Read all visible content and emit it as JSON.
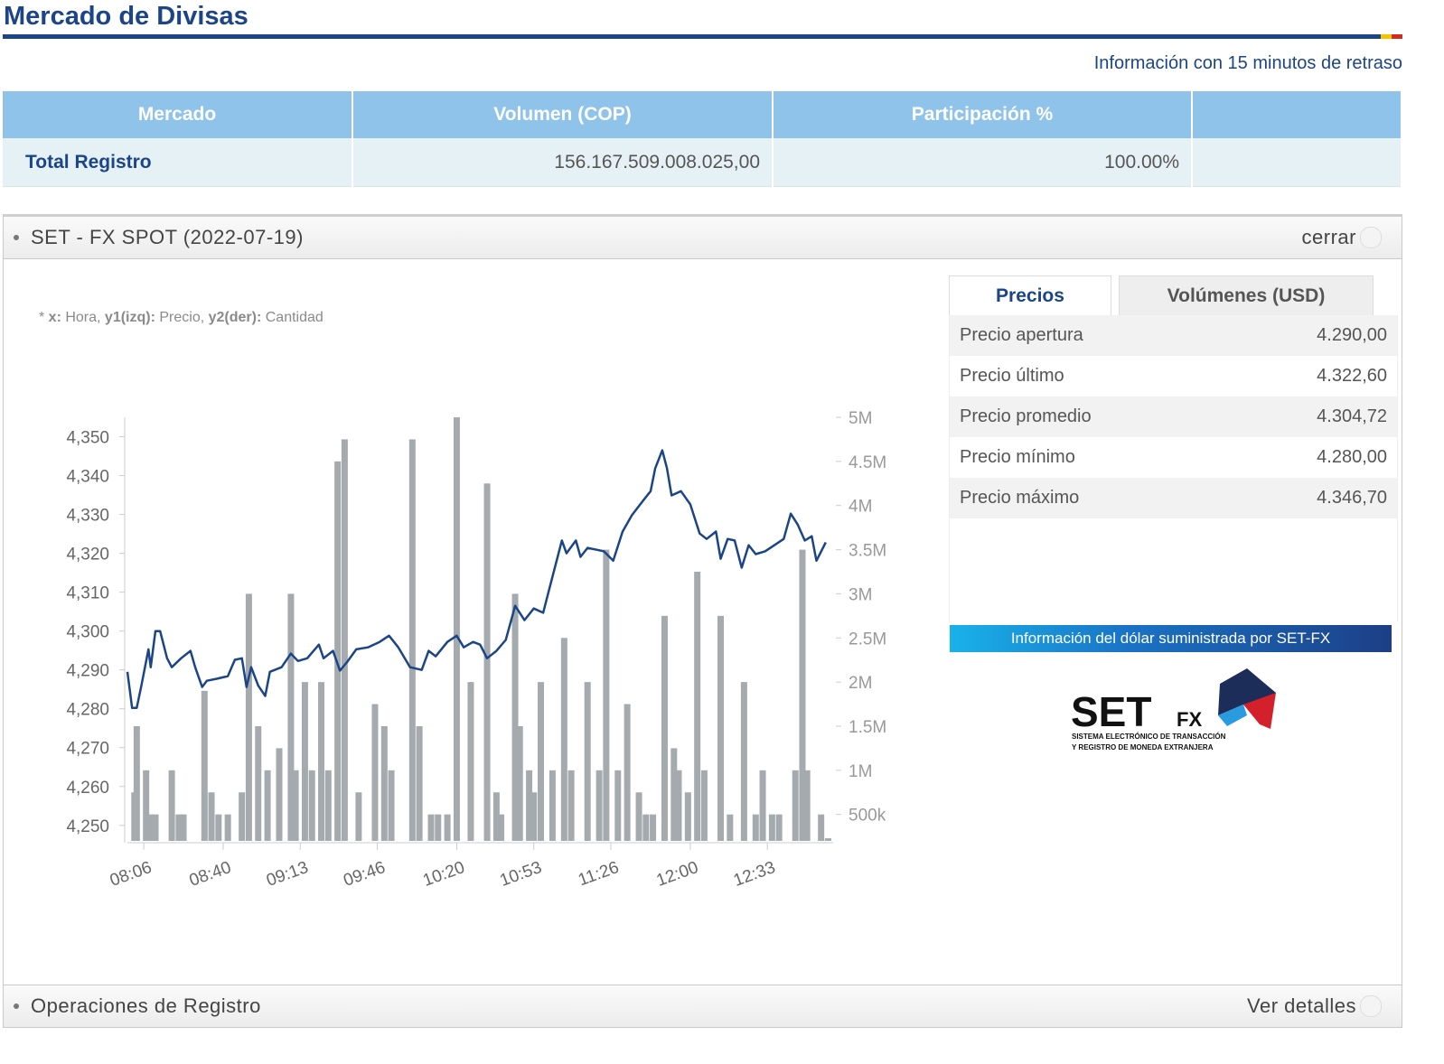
{
  "header": {
    "title": "Mercado de Divisas",
    "notice": "Información con 15 minutos de retraso"
  },
  "table": {
    "columns": [
      "Mercado",
      "Volumen (COP)",
      "Participación %"
    ],
    "rows": [
      [
        "Total Registro",
        "156.167.509.008.025,00",
        "100.00%"
      ]
    ]
  },
  "panel": {
    "title": "SET - FX SPOT (2022-07-19)",
    "action": "cerrar"
  },
  "chart_data": {
    "type": "combo",
    "note": [
      {
        "text": "* "
      },
      {
        "text": "x:",
        "bold": true
      },
      {
        "text": " Hora, "
      },
      {
        "text": "y1(izq):",
        "bold": true
      },
      {
        "text": " Precio, "
      },
      {
        "text": "y2(der):",
        "bold": true
      },
      {
        "text": " Cantidad"
      }
    ],
    "xlim": [
      "07:59",
      "13:00"
    ],
    "xticks": [
      "08:06",
      "08:40",
      "09:13",
      "09:46",
      "10:20",
      "10:53",
      "11:26",
      "12:00",
      "12:33"
    ],
    "ylim": [
      4246,
      4355
    ],
    "yticks": [
      {
        "value": 4250,
        "label": "4,250"
      },
      {
        "value": 4260,
        "label": "4,260"
      },
      {
        "value": 4270,
        "label": "4,270"
      },
      {
        "value": 4280,
        "label": "4,280"
      },
      {
        "value": 4290,
        "label": "4,290"
      },
      {
        "value": 4300,
        "label": "4,300"
      },
      {
        "value": 4310,
        "label": "4,310"
      },
      {
        "value": 4320,
        "label": "4,320"
      },
      {
        "value": 4330,
        "label": "4,330"
      },
      {
        "value": 4340,
        "label": "4,340"
      },
      {
        "value": 4350,
        "label": "4,350"
      }
    ],
    "y2lim": [
      200000,
      5000000
    ],
    "y2ticks": [
      {
        "value": 500000,
        "label": "500k"
      },
      {
        "value": 1000000,
        "label": "1M"
      },
      {
        "value": 1500000,
        "label": "1.5M"
      },
      {
        "value": 2000000,
        "label": "2M"
      },
      {
        "value": 2500000,
        "label": "2.5M"
      },
      {
        "value": 3000000,
        "label": "3M"
      },
      {
        "value": 3500000,
        "label": "3.5M"
      },
      {
        "value": 4000000,
        "label": "4M"
      },
      {
        "value": 4500000,
        "label": "4.5M"
      },
      {
        "value": 5000000,
        "label": "5M"
      }
    ],
    "series": [
      {
        "type": "bar",
        "axis": "y2",
        "color": "#a5aaae",
        "x": [
          "08:02",
          "08:03",
          "08:07",
          "08:09",
          "08:11",
          "08:18",
          "08:21",
          "08:23",
          "08:32",
          "08:35",
          "08:38",
          "08:42",
          "08:48",
          "08:51",
          "08:55",
          "08:59",
          "09:04",
          "09:09",
          "09:11",
          "09:15",
          "09:18",
          "09:22",
          "09:25",
          "09:29",
          "09:32",
          "09:38",
          "09:45",
          "09:49",
          "09:52",
          "10:01",
          "10:04",
          "10:09",
          "10:12",
          "10:16",
          "10:20",
          "10:26",
          "10:33",
          "10:37",
          "10:39",
          "10:45",
          "10:47",
          "10:51",
          "10:53",
          "10:56",
          "11:01",
          "11:06",
          "11:09",
          "11:16",
          "11:21",
          "11:24",
          "11:29",
          "11:33",
          "11:38",
          "11:41",
          "11:44",
          "11:49",
          "11:53",
          "11:55",
          "11:59",
          "12:03",
          "12:06",
          "12:13",
          "12:17",
          "12:23",
          "12:28",
          "12:31",
          "12:35",
          "12:38",
          "12:45",
          "12:48",
          "12:50",
          "12:56",
          "12:59"
        ],
        "values": [
          750000,
          1500000,
          1000000,
          500000,
          500000,
          1000000,
          500000,
          500000,
          1900000,
          750000,
          500000,
          500000,
          750000,
          3000000,
          1500000,
          1000000,
          1250000,
          3000000,
          1000000,
          2000000,
          1000000,
          2000000,
          1000000,
          4500000,
          4750000,
          750000,
          1750000,
          1500000,
          1000000,
          4750000,
          1500000,
          500000,
          500000,
          500000,
          5000000,
          2000000,
          4250000,
          750000,
          500000,
          3000000,
          1500000,
          1000000,
          750000,
          2000000,
          1000000,
          2500000,
          1000000,
          2000000,
          1000000,
          3500000,
          1000000,
          1750000,
          750000,
          500000,
          500000,
          2750000,
          1250000,
          1000000,
          750000,
          3250000,
          1000000,
          2750000,
          500000,
          2000000,
          500000,
          1000000,
          500000,
          500000,
          1000000,
          3500000,
          1000000,
          500000,
          230000
        ]
      },
      {
        "type": "line",
        "color": "#1c4587",
        "x": [
          "07:59",
          "08:01",
          "08:03",
          "08:05",
          "08:08",
          "08:09",
          "08:11",
          "08:13",
          "08:16",
          "08:18",
          "08:22",
          "08:26",
          "08:28",
          "08:31",
          "08:33",
          "08:37",
          "08:42",
          "08:45",
          "08:48",
          "08:50",
          "08:52",
          "08:55",
          "08:58",
          "09:00",
          "09:05",
          "09:09",
          "09:12",
          "09:16",
          "09:21",
          "09:23",
          "09:27",
          "09:30",
          "09:33",
          "09:37",
          "09:42",
          "09:47",
          "09:51",
          "09:55",
          "10:00",
          "10:05",
          "10:08",
          "10:11",
          "10:16",
          "10:20",
          "10:23",
          "10:27",
          "10:30",
          "10:33",
          "10:37",
          "10:41",
          "10:45",
          "10:49",
          "10:53",
          "10:57",
          "10:59",
          "11:02",
          "11:05",
          "11:07",
          "11:11",
          "11:13",
          "11:16",
          "11:20",
          "11:23",
          "11:27",
          "11:31",
          "11:35",
          "11:40",
          "11:43",
          "11:45",
          "11:48",
          "11:50",
          "11:52",
          "11:56",
          "12:00",
          "12:04",
          "12:07",
          "12:11",
          "12:13",
          "12:16",
          "12:19",
          "12:22",
          "12:25",
          "12:28",
          "12:32",
          "12:36",
          "12:40",
          "12:43",
          "12:46",
          "12:49",
          "12:52",
          "12:54",
          "12:58"
        ],
        "values": [
          4289.5,
          4280.2,
          4280.2,
          4286,
          4295.3,
          4290.7,
          4300,
          4300,
          4293,
          4290.7,
          4293,
          4294.9,
          4290.7,
          4285.6,
          4287.2,
          4287.7,
          4288.4,
          4292.6,
          4293,
          4285.6,
          4290.7,
          4286,
          4283.3,
          4289.5,
          4290.7,
          4294.2,
          4292.3,
          4293,
          4296.5,
          4293,
          4294.9,
          4289.8,
          4292,
          4295.3,
          4295.8,
          4297.2,
          4298.8,
          4295.8,
          4290.7,
          4290,
          4294.9,
          4293.5,
          4297.2,
          4298.8,
          4295.8,
          4297.2,
          4296.5,
          4293,
          4294.9,
          4297.7,
          4306.5,
          4302.8,
          4305.8,
          4304.7,
          4309.3,
          4316.3,
          4323.3,
          4320,
          4323.3,
          4319.1,
          4321.4,
          4320.9,
          4320.5,
          4318.1,
          4325.6,
          4329.8,
          4333.7,
          4336,
          4341.9,
          4346.5,
          4341.9,
          4334.9,
          4336,
          4332.6,
          4325.1,
          4323.7,
          4325.6,
          4318.6,
          4323.7,
          4323.3,
          4316.3,
          4322.1,
          4319.8,
          4320.5,
          4322.1,
          4323.7,
          4330.2,
          4327.4,
          4323.3,
          4324.4,
          4318.1,
          4322.8
        ]
      }
    ]
  },
  "stats": {
    "tabs": [
      "Precios",
      "Volúmenes (USD)"
    ],
    "rows": [
      {
        "label": "Precio apertura",
        "value": "4.290,00"
      },
      {
        "label": "Precio último",
        "value": "4.322,60"
      },
      {
        "label": "Precio promedio",
        "value": "4.304,72"
      },
      {
        "label": "Precio mínimo",
        "value": "4.280,00"
      },
      {
        "label": "Precio máximo",
        "value": "4.346,70"
      }
    ],
    "banner": "Información del dólar suministrada por SET-FX",
    "logo": {
      "main": "SET",
      "sub": "FX",
      "line1": "SISTEMA ELECTRÓNICO DE TRANSACCIÓN",
      "line2": "Y REGISTRO DE MONEDA EXTRANJERA"
    }
  },
  "footer_panel": {
    "title": "Operaciones de Registro",
    "action": "Ver detalles"
  }
}
